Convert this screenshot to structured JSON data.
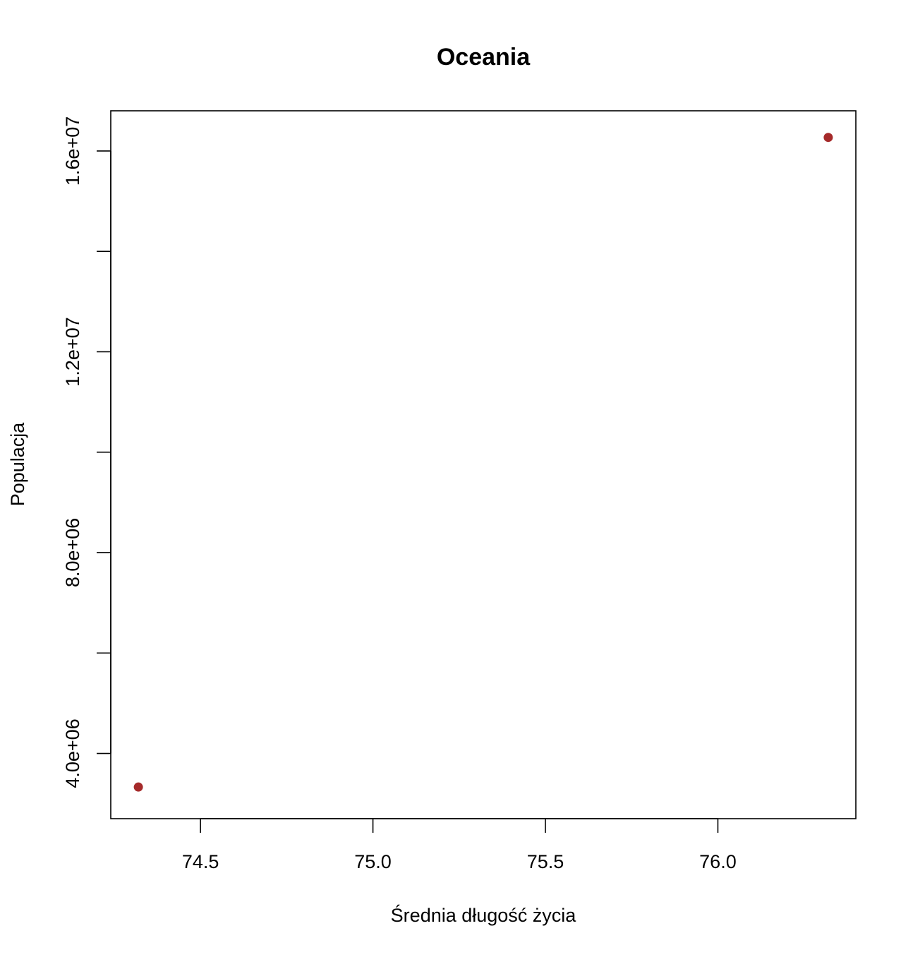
{
  "chart_data": {
    "type": "scatter",
    "title": "Oceania",
    "xlabel": "Średnia długość życia",
    "ylabel": "Populacja",
    "xlim": [
      74.24,
      76.4
    ],
    "ylim": [
      2700000,
      16800000
    ],
    "x_ticks": [
      74.5,
      75.0,
      75.5,
      76.0
    ],
    "x_tick_labels": [
      "74.5",
      "75.0",
      "75.5",
      "76.0"
    ],
    "y_ticks": [
      4000000,
      6000000,
      8000000,
      10000000,
      12000000,
      14000000,
      16000000
    ],
    "y_tick_labels": [
      "4.0e+06",
      "",
      "8.0e+06",
      "",
      "1.2e+07",
      "",
      "1.6e+07"
    ],
    "grid": false,
    "legend": "none",
    "point_color": "#a52a2a",
    "points": [
      {
        "x": 74.32,
        "y": 3330000
      },
      {
        "x": 76.32,
        "y": 16270000
      }
    ]
  }
}
